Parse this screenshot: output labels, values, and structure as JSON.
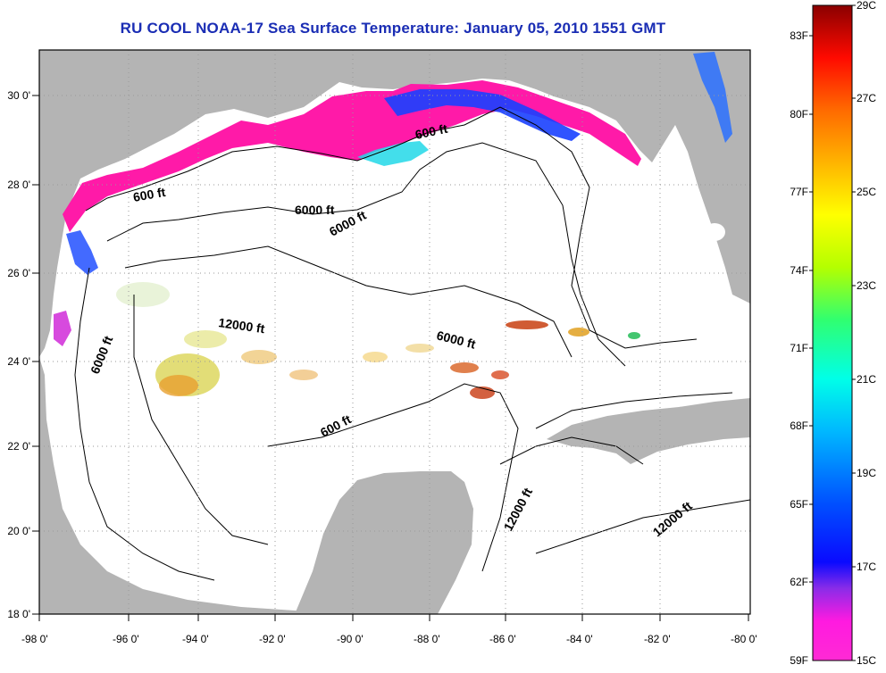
{
  "title": "RU COOL  NOAA-17  Sea Surface Temperature:  January 05, 2010 1551 GMT",
  "map": {
    "lon_labels": [
      "-98 0'",
      "-96 0'",
      "-94 0'",
      "-92 0'",
      "-90 0'",
      "-88 0'",
      "-86 0'",
      "-84 0'",
      "-82 0'",
      "-80 0'"
    ],
    "lon_values": [
      -98,
      -96,
      -94,
      -92,
      -90,
      -88,
      -86,
      -84,
      -82,
      -80
    ],
    "lat_labels": [
      "18 0'",
      "20 0'",
      "22 0'",
      "24 0'",
      "26 0'",
      "28 0'",
      "30 0'"
    ],
    "lat_values": [
      18,
      20,
      22,
      24,
      26,
      28,
      30
    ],
    "contour_labels": [
      "600 ft",
      "600 ft",
      "600 ft",
      "6000 ft",
      "6000 ft",
      "6000 ft",
      "6000 ft",
      "12000 ft",
      "12000 ft",
      "12000 ft"
    ]
  },
  "colorbar": {
    "fahrenheit_labels": [
      "83F",
      "80F",
      "77F",
      "74F",
      "71F",
      "68F",
      "65F",
      "62F",
      "59F"
    ],
    "celsius_labels": [
      "29C",
      "27C",
      "25C",
      "23C",
      "21C",
      "19C",
      "17C",
      "15C"
    ],
    "celsius_min": 15,
    "celsius_max": 29
  },
  "colors": {
    "land": "#b4b4b4",
    "title": "#1a2db4",
    "cold": "#ff1aa8",
    "cool": "#0a3cff",
    "mid": "#00e0e0",
    "warm": "#ff9a00",
    "hot": "#d42000"
  }
}
